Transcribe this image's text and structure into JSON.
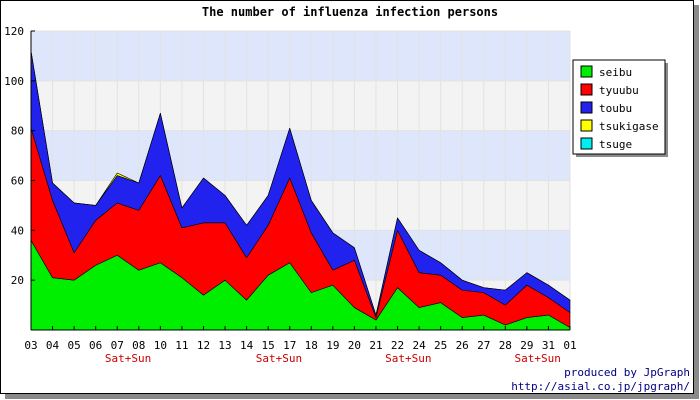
{
  "chart_data": {
    "type": "area",
    "stacked": true,
    "title": "The number of influenza infection persons",
    "categories": [
      "03",
      "04",
      "05",
      "06",
      "07",
      "08",
      "10",
      "11",
      "12",
      "13",
      "14",
      "15",
      "17",
      "18",
      "19",
      "20",
      "21",
      "22",
      "24",
      "25",
      "26",
      "27",
      "28",
      "29",
      "31",
      "01"
    ],
    "weekend_label": "Sat+Sun",
    "weekend_marks": [
      "07",
      "15",
      "22",
      "29"
    ],
    "ylim": [
      0,
      120
    ],
    "yticks": [
      20,
      40,
      60,
      80,
      100,
      120
    ],
    "grid": true,
    "legend_position": "right",
    "series": [
      {
        "name": "seibu",
        "color": "#00ee00",
        "values": [
          36,
          21,
          20,
          26,
          30,
          24,
          27,
          21,
          14,
          20,
          12,
          22,
          27,
          15,
          18,
          9,
          4,
          17,
          9,
          11,
          5,
          6,
          2,
          5,
          6,
          1
        ]
      },
      {
        "name": "tyuubu",
        "color": "#ff0000",
        "values": [
          45,
          31,
          11,
          18,
          21,
          24,
          35,
          20,
          29,
          23,
          17,
          20,
          34,
          24,
          6,
          19,
          1,
          23,
          14,
          11,
          11,
          9,
          8,
          13,
          7,
          6
        ]
      },
      {
        "name": "toubu",
        "color": "#2222ee",
        "values": [
          31,
          7,
          20,
          6,
          11,
          11,
          25,
          8,
          18,
          11,
          13,
          12,
          20,
          13,
          15,
          5,
          1,
          5,
          9,
          5,
          4,
          2,
          6,
          5,
          5,
          5
        ]
      },
      {
        "name": "tsukigase",
        "color": "#ffff00",
        "values": [
          0,
          0,
          0,
          0,
          1,
          0,
          0,
          0,
          0,
          0,
          0,
          0,
          0,
          0,
          0,
          0,
          0,
          0,
          0,
          0,
          0,
          0,
          0,
          0,
          0,
          0
        ]
      },
      {
        "name": "tsuge",
        "color": "#00eeee",
        "values": [
          0,
          0,
          0,
          0,
          0,
          0,
          0,
          0,
          0,
          0,
          0,
          0,
          0,
          0,
          0,
          0,
          0,
          0,
          0,
          0,
          0,
          0,
          0,
          0,
          0,
          0
        ]
      }
    ]
  },
  "credit": {
    "line1": "produced by JpGraph",
    "line2": "http://asial.co.jp/jpgraph/"
  }
}
